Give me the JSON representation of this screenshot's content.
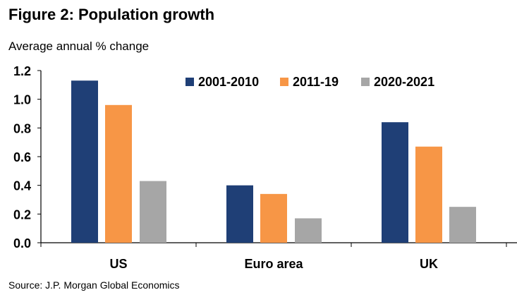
{
  "chart_data": {
    "type": "bar",
    "title": "Figure 2: Population growth",
    "subtitle": "Average annual % change",
    "xlabel": "",
    "ylabel": "",
    "categories": [
      "US",
      "Euro area",
      "UK"
    ],
    "series": [
      {
        "name": "2001-2010",
        "color": "#1F3F76",
        "values": [
          1.13,
          0.4,
          0.84
        ]
      },
      {
        "name": "2011-19",
        "color": "#F79646",
        "values": [
          0.96,
          0.34,
          0.67
        ]
      },
      {
        "name": "2020-2021",
        "color": "#A6A6A6",
        "values": [
          0.43,
          0.17,
          0.25
        ]
      }
    ],
    "ylim": [
      0,
      1.2
    ],
    "yticks": [
      "0.0",
      "0.2",
      "0.4",
      "0.6",
      "0.8",
      "1.0",
      "1.2"
    ],
    "grid": false,
    "legend_position": "top-right",
    "source": "Source: J.P. Morgan Global Economics"
  }
}
